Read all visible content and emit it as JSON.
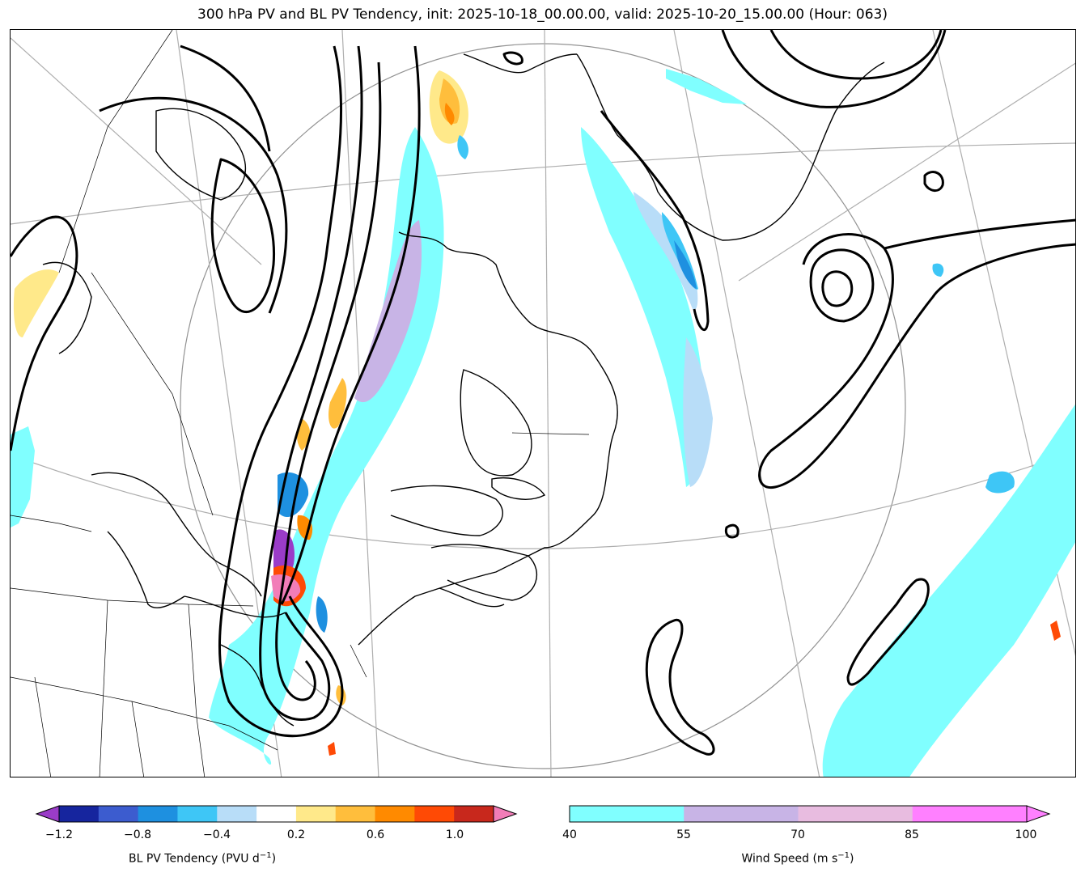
{
  "title": "300 hPa PV and BL PV Tendency, init: 2025-10-18_00.00.00, valid: 2025-10-20_15.00.00 (Hour: 063)",
  "colorbars": {
    "pv_tendency": {
      "label": "BL PV Tendency (PVU d$^{-1}$)",
      "label_display": "BL PV Tendency (PVU d",
      "label_sup": "−1",
      "label_end": ")",
      "ticks": [
        "−1.2",
        "−0.8",
        "−0.4",
        "0.2",
        "0.6",
        "1.0"
      ],
      "colors": [
        "#9a3cc8",
        "#16259e",
        "#3c5ccf",
        "#1e90e0",
        "#3ec6f6",
        "#b8ddf8",
        "#ffffff",
        "#ffe98a",
        "#ffbe3c",
        "#ff8a00",
        "#ff4a05",
        "#c8281c",
        "#f27db8"
      ]
    },
    "wind_speed": {
      "label_display": "Wind Speed (m s",
      "label_sup": "−1",
      "label_end": ")",
      "ticks": [
        "40",
        "55",
        "70",
        "85",
        "100"
      ],
      "colors": [
        "#80ffff",
        "#c8b4e6",
        "#e8bce0",
        "#ff80ff"
      ]
    }
  },
  "colors": {
    "jet_fill": "#80ffff",
    "jet_core": "#c8b4e6",
    "neg_light": "#b8ddf8",
    "neg_mid": "#3ec6f6",
    "neg_strong": "#1e90e0",
    "pos_light": "#ffe98a",
    "pos_mid": "#ffbe3c",
    "pos_strong": "#ff8a00",
    "pos_max": "#f27db8",
    "purple": "#9a3cc8"
  }
}
